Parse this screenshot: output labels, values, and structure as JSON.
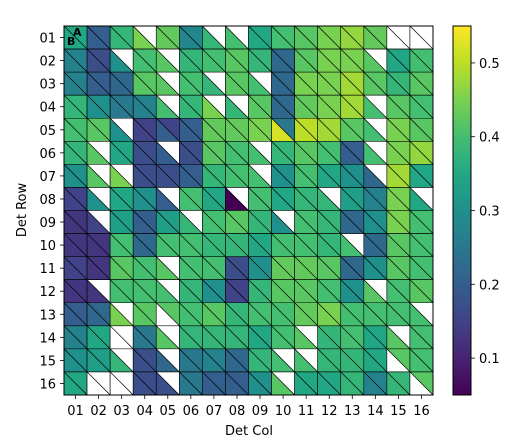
{
  "chart_data": {
    "type": "heatmap",
    "cell_shape": "split-triangles",
    "xlabel": "Det Col",
    "ylabel": "Det Row",
    "x_categories": [
      "01",
      "02",
      "03",
      "04",
      "05",
      "06",
      "07",
      "08",
      "09",
      "10",
      "11",
      "12",
      "13",
      "14",
      "15",
      "16"
    ],
    "y_categories": [
      "01",
      "02",
      "03",
      "04",
      "05",
      "06",
      "07",
      "08",
      "09",
      "10",
      "11",
      "12",
      "13",
      "14",
      "15",
      "16"
    ],
    "corner_labels": [
      "A",
      "B"
    ],
    "colorbar": {
      "colormap": "viridis",
      "range": [
        0.05,
        0.55
      ],
      "ticks": [
        0.1,
        0.2,
        0.3,
        0.4,
        0.5
      ]
    },
    "grid": true,
    "values_note": "Each cell split along its diagonal: upper triangle = first value, lower triangle = second value; null = blank (white).",
    "rows": [
      [
        [
          0.35,
          0.35
        ],
        [
          0.2,
          0.2
        ],
        [
          0.38,
          0.38
        ],
        [
          null,
          0.45
        ],
        [
          0.43,
          0.43
        ],
        [
          0.28,
          0.28
        ],
        [
          null,
          0.38
        ],
        [
          null,
          0.4
        ],
        [
          0.35,
          0.35
        ],
        [
          0.4,
          0.4
        ],
        [
          0.42,
          0.42
        ],
        [
          0.45,
          0.45
        ],
        [
          0.47,
          0.47
        ],
        [
          0.43,
          0.43
        ],
        [
          null,
          null
        ],
        [
          null,
          null
        ]
      ],
      [
        [
          0.27,
          0.27
        ],
        [
          0.17,
          0.17
        ],
        [
          null,
          0.3
        ],
        [
          0.4,
          0.4
        ],
        [
          null,
          0.42
        ],
        [
          0.38,
          0.38
        ],
        [
          0.4,
          0.4
        ],
        [
          0.42,
          0.42
        ],
        [
          0.38,
          0.38
        ],
        [
          0.22,
          0.22
        ],
        [
          0.42,
          0.42
        ],
        [
          0.45,
          0.45
        ],
        [
          0.45,
          0.45
        ],
        [
          null,
          0.42
        ],
        [
          0.35,
          0.35
        ],
        [
          0.4,
          0.4
        ]
      ],
      [
        [
          0.27,
          0.27
        ],
        [
          0.2,
          0.2
        ],
        [
          0.22,
          0.22
        ],
        [
          0.42,
          0.42
        ],
        [
          null,
          0.42
        ],
        [
          0.4,
          0.4
        ],
        [
          null,
          0.38
        ],
        [
          0.42,
          0.42
        ],
        [
          null,
          0.4
        ],
        [
          0.22,
          0.22
        ],
        [
          0.45,
          0.45
        ],
        [
          0.45,
          0.45
        ],
        [
          0.48,
          0.48
        ],
        [
          0.42,
          0.42
        ],
        [
          0.38,
          0.38
        ],
        [
          0.42,
          0.42
        ]
      ],
      [
        [
          0.38,
          0.38
        ],
        [
          0.3,
          0.3
        ],
        [
          0.25,
          0.25
        ],
        [
          0.27,
          0.27
        ],
        [
          null,
          0.4
        ],
        [
          0.38,
          0.38
        ],
        [
          null,
          0.45
        ],
        [
          null,
          0.38
        ],
        [
          0.42,
          0.42
        ],
        [
          0.22,
          0.22
        ],
        [
          0.43,
          0.43
        ],
        [
          0.45,
          0.45
        ],
        [
          0.48,
          0.48
        ],
        [
          null,
          0.4
        ],
        [
          0.42,
          0.42
        ],
        [
          0.4,
          0.4
        ]
      ],
      [
        [
          0.4,
          0.4
        ],
        [
          0.42,
          0.42
        ],
        [
          null,
          0.3
        ],
        [
          0.15,
          0.15
        ],
        [
          0.15,
          0.2
        ],
        [
          0.2,
          0.2
        ],
        [
          0.43,
          0.43
        ],
        [
          0.43,
          0.43
        ],
        [
          0.45,
          0.45
        ],
        [
          0.25,
          0.52
        ],
        [
          0.5,
          0.5
        ],
        [
          0.48,
          0.48
        ],
        [
          0.42,
          0.42
        ],
        [
          null,
          0.4
        ],
        [
          0.45,
          0.45
        ],
        [
          0.42,
          0.42
        ]
      ],
      [
        [
          0.38,
          0.38
        ],
        [
          null,
          0.42
        ],
        [
          0.35,
          0.35
        ],
        [
          0.17,
          0.17
        ],
        [
          null,
          0.2
        ],
        [
          0.17,
          0.17
        ],
        [
          0.42,
          0.42
        ],
        [
          0.4,
          0.4
        ],
        [
          null,
          0.4
        ],
        [
          0.38,
          0.38
        ],
        [
          0.42,
          0.42
        ],
        [
          0.4,
          0.4
        ],
        [
          0.2,
          0.2
        ],
        [
          null,
          0.4
        ],
        [
          0.45,
          0.45
        ],
        [
          0.47,
          0.47
        ]
      ],
      [
        [
          0.3,
          0.3
        ],
        [
          null,
          0.42
        ],
        [
          null,
          0.45
        ],
        [
          0.17,
          0.17
        ],
        [
          0.17,
          0.17
        ],
        [
          0.2,
          0.2
        ],
        [
          0.38,
          0.38
        ],
        [
          0.4,
          0.4
        ],
        [
          null,
          0.4
        ],
        [
          0.3,
          0.3
        ],
        [
          0.4,
          0.4
        ],
        [
          0.35,
          0.35
        ],
        [
          0.3,
          0.3
        ],
        [
          null,
          0.22
        ],
        [
          0.48,
          0.48
        ],
        [
          0.35,
          0.35
        ]
      ],
      [
        [
          0.15,
          0.15
        ],
        [
          null,
          0.3
        ],
        [
          0.35,
          0.35
        ],
        [
          0.3,
          0.3
        ],
        [
          null,
          0.2
        ],
        [
          0.4,
          0.4
        ],
        [
          0.35,
          0.35
        ],
        [
          null,
          0.05
        ],
        [
          0.4,
          0.4
        ],
        [
          0.35,
          0.35
        ],
        [
          0.38,
          0.38
        ],
        [
          null,
          0.38
        ],
        [
          0.33,
          0.33
        ],
        [
          0.27,
          0.27
        ],
        [
          0.45,
          0.45
        ],
        [
          null,
          0.35
        ]
      ],
      [
        [
          0.13,
          0.13
        ],
        [
          null,
          0.15
        ],
        [
          0.33,
          0.33
        ],
        [
          0.2,
          0.2
        ],
        [
          0.33,
          0.33
        ],
        [
          null,
          0.38
        ],
        [
          0.4,
          0.4
        ],
        [
          0.42,
          0.42
        ],
        [
          0.38,
          0.38
        ],
        [
          null,
          0.3
        ],
        [
          0.4,
          0.4
        ],
        [
          0.38,
          0.38
        ],
        [
          0.22,
          0.22
        ],
        [
          0.3,
          0.3
        ],
        [
          0.45,
          0.45
        ],
        [
          0.4,
          0.4
        ]
      ],
      [
        [
          0.13,
          0.13
        ],
        [
          0.13,
          0.13
        ],
        [
          0.4,
          0.4
        ],
        [
          0.22,
          0.22
        ],
        [
          0.4,
          0.4
        ],
        [
          0.4,
          0.4
        ],
        [
          0.38,
          0.38
        ],
        [
          0.38,
          0.38
        ],
        [
          0.35,
          0.35
        ],
        [
          0.4,
          0.4
        ],
        [
          0.4,
          0.4
        ],
        [
          0.38,
          0.38
        ],
        [
          null,
          0.4
        ],
        [
          0.22,
          0.22
        ],
        [
          0.42,
          0.42
        ],
        [
          0.4,
          0.4
        ]
      ],
      [
        [
          0.15,
          0.15
        ],
        [
          0.13,
          0.13
        ],
        [
          0.42,
          0.42
        ],
        [
          0.4,
          0.4
        ],
        [
          null,
          0.42
        ],
        [
          0.4,
          0.4
        ],
        [
          0.4,
          0.4
        ],
        [
          0.17,
          0.17
        ],
        [
          0.3,
          0.3
        ],
        [
          0.43,
          0.43
        ],
        [
          0.43,
          0.43
        ],
        [
          0.42,
          0.42
        ],
        [
          0.22,
          0.22
        ],
        [
          0.3,
          0.3
        ],
        [
          0.42,
          0.42
        ],
        [
          0.4,
          0.4
        ]
      ],
      [
        [
          0.13,
          0.13
        ],
        [
          null,
          0.13
        ],
        [
          0.4,
          0.4
        ],
        [
          0.4,
          0.4
        ],
        [
          null,
          0.4
        ],
        [
          0.38,
          0.38
        ],
        [
          0.3,
          0.3
        ],
        [
          0.15,
          0.15
        ],
        [
          0.38,
          0.38
        ],
        [
          0.42,
          0.42
        ],
        [
          0.42,
          0.42
        ],
        [
          0.4,
          0.4
        ],
        [
          0.3,
          0.3
        ],
        [
          null,
          0.42
        ],
        [
          0.4,
          0.4
        ],
        [
          0.42,
          0.42
        ]
      ],
      [
        [
          0.2,
          0.2
        ],
        [
          0.22,
          0.22
        ],
        [
          null,
          0.45
        ],
        [
          0.42,
          0.42
        ],
        [
          0.42,
          null
        ],
        [
          0.4,
          0.4
        ],
        [
          0.42,
          0.42
        ],
        [
          0.38,
          0.38
        ],
        [
          0.4,
          0.4
        ],
        [
          0.4,
          0.4
        ],
        [
          0.43,
          0.43
        ],
        [
          0.45,
          0.45
        ],
        [
          0.4,
          0.4
        ],
        [
          0.4,
          0.4
        ],
        [
          0.4,
          0.4
        ],
        [
          null,
          0.4
        ]
      ],
      [
        [
          0.27,
          0.27
        ],
        [
          0.35,
          0.35
        ],
        [
          null,
          null
        ],
        [
          0.25,
          0.25
        ],
        [
          null,
          0.42
        ],
        [
          0.38,
          0.38
        ],
        [
          0.38,
          0.38
        ],
        [
          0.38,
          0.38
        ],
        [
          0.35,
          0.35
        ],
        [
          0.4,
          0.4
        ],
        [
          null,
          0.42
        ],
        [
          0.38,
          0.38
        ],
        [
          0.4,
          0.4
        ],
        [
          0.35,
          0.35
        ],
        [
          null,
          0.42
        ],
        [
          0.4,
          0.4
        ]
      ],
      [
        [
          0.3,
          0.3
        ],
        [
          0.33,
          0.33
        ],
        [
          null,
          0.38
        ],
        [
          0.17,
          0.17
        ],
        [
          null,
          0.22
        ],
        [
          0.25,
          0.25
        ],
        [
          0.27,
          0.27
        ],
        [
          0.22,
          0.22
        ],
        [
          0.38,
          0.38
        ],
        [
          null,
          0.4
        ],
        [
          null,
          0.4
        ],
        [
          0.38,
          0.38
        ],
        [
          0.38,
          0.38
        ],
        [
          0.35,
          0.35
        ],
        [
          0.42,
          null
        ],
        [
          0.4,
          0.4
        ]
      ],
      [
        [
          0.35,
          0.35
        ],
        [
          null,
          null
        ],
        [
          null,
          null
        ],
        [
          0.17,
          0.17
        ],
        [
          null,
          0.17
        ],
        [
          0.25,
          0.25
        ],
        [
          0.2,
          0.2
        ],
        [
          0.2,
          0.2
        ],
        [
          0.3,
          0.3
        ],
        [
          null,
          0.42
        ],
        [
          0.35,
          0.35
        ],
        [
          0.35,
          0.35
        ],
        [
          0.38,
          0.38
        ],
        [
          0.27,
          0.27
        ],
        [
          0.38,
          0.38
        ],
        [
          0.42,
          null
        ]
      ]
    ]
  }
}
